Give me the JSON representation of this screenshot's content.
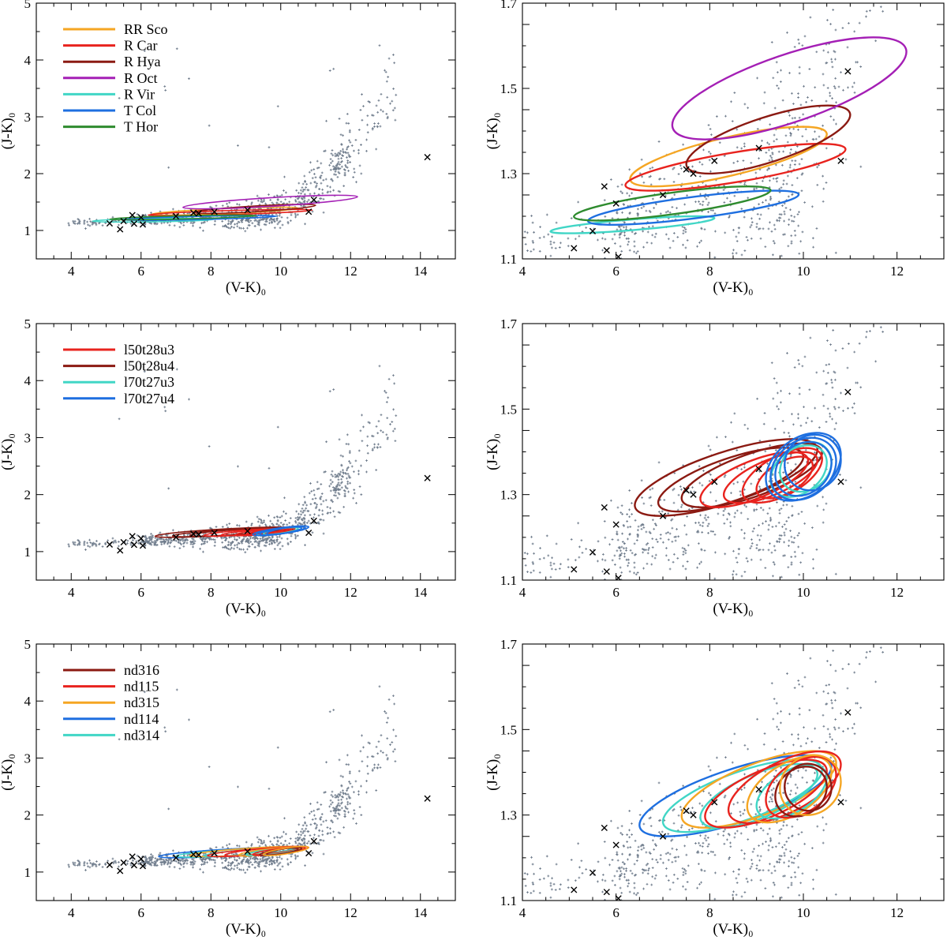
{
  "chart_data": [
    {
      "type": "scatter",
      "panel": "top-left",
      "xlabel": "(V-K)₀",
      "ylabel": "(J-K)₀",
      "xlim": [
        3,
        15
      ],
      "ylim": [
        0.5,
        5
      ],
      "xticks": [
        "4",
        "6",
        "8",
        "10",
        "12",
        "14"
      ],
      "yticks": [
        "1",
        "2",
        "3",
        "4",
        "5"
      ],
      "legend_position": "top-left",
      "legend": [
        {
          "label": "RR Sco",
          "color": "#f5a623"
        },
        {
          "label": "R Car",
          "color": "#e8231e"
        },
        {
          "label": "R Hya",
          "color": "#8b1a12"
        },
        {
          "label": "R Oct",
          "color": "#a41fb5"
        },
        {
          "label": "R Vir",
          "color": "#41d6c6"
        },
        {
          "label": "T Col",
          "color": "#1e6fe0"
        },
        {
          "label": "T Hor",
          "color": "#2e8b2e"
        }
      ],
      "ellipses": [
        {
          "name": "RR Sco",
          "color": "#f5a623",
          "x1": 6.3,
          "x2": 10.5,
          "ymin": 1.27,
          "ymax": 1.41
        },
        {
          "name": "R Car",
          "color": "#e8231e",
          "x1": 6.2,
          "x2": 10.9,
          "ymin": 1.26,
          "ymax": 1.37
        },
        {
          "name": "R Hya",
          "color": "#8b1a12",
          "x1": 7.5,
          "x2": 11.0,
          "ymin": 1.3,
          "ymax": 1.46
        },
        {
          "name": "R Oct",
          "color": "#a41fb5",
          "x1": 7.2,
          "x2": 12.2,
          "ymin": 1.38,
          "ymax": 1.62
        },
        {
          "name": "R Vir",
          "color": "#41d6c6",
          "x1": 4.6,
          "x2": 8.1,
          "ymin": 1.16,
          "ymax": 1.2
        },
        {
          "name": "T Col",
          "color": "#1e6fe0",
          "x1": 5.4,
          "x2": 9.9,
          "ymin": 1.18,
          "ymax": 1.26
        },
        {
          "name": "T Hor",
          "color": "#2e8b2e",
          "x1": 5.1,
          "x2": 9.3,
          "ymin": 1.19,
          "ymax": 1.27
        }
      ]
    },
    {
      "type": "scatter",
      "panel": "top-right",
      "xlabel": "(V-K)₀",
      "ylabel": "(J-K)₀",
      "xlim": [
        4,
        13
      ],
      "ylim": [
        1.1,
        1.7
      ],
      "xticks": [
        "4",
        "6",
        "8",
        "10",
        "12"
      ],
      "yticks": [
        "1.1",
        "1.3",
        "1.5",
        "1.7"
      ],
      "ellipses_same_as": "top-left"
    },
    {
      "type": "scatter",
      "panel": "middle-left",
      "xlabel": "(V-K)₀",
      "ylabel": "(J-K)₀",
      "xlim": [
        3,
        15
      ],
      "ylim": [
        0.5,
        5
      ],
      "xticks": [
        "4",
        "6",
        "8",
        "10",
        "12",
        "14"
      ],
      "yticks": [
        "1",
        "2",
        "3",
        "4",
        "5"
      ],
      "legend_position": "top-left",
      "legend": [
        {
          "label": "l50t28u3",
          "color": "#e8231e"
        },
        {
          "label": "l50t28u4",
          "color": "#8b1a12"
        },
        {
          "label": "l70t27u3",
          "color": "#41d6c6"
        },
        {
          "label": "l70t27u4",
          "color": "#1e6fe0"
        }
      ],
      "ellipses": [
        {
          "name": "l50t28u4",
          "color": "#8b1a12",
          "x1": 6.4,
          "x2": 10.3,
          "ymin": 1.25,
          "ymax": 1.43
        },
        {
          "name": "l50t28u4",
          "color": "#8b1a12",
          "x1": 6.9,
          "x2": 10.0,
          "ymin": 1.26,
          "ymax": 1.41
        },
        {
          "name": "l50t28u4",
          "color": "#8b1a12",
          "x1": 7.4,
          "x2": 10.4,
          "ymin": 1.27,
          "ymax": 1.42
        },
        {
          "name": "l50t28u3",
          "color": "#e8231e",
          "x1": 7.8,
          "x2": 10.1,
          "ymin": 1.27,
          "ymax": 1.4
        },
        {
          "name": "l50t28u3",
          "color": "#e8231e",
          "x1": 8.3,
          "x2": 10.3,
          "ymin": 1.28,
          "ymax": 1.4
        },
        {
          "name": "l50t28u3",
          "color": "#e8231e",
          "x1": 8.7,
          "x2": 10.4,
          "ymin": 1.28,
          "ymax": 1.41
        },
        {
          "name": "l50t28u3",
          "color": "#e8231e",
          "x1": 9.0,
          "x2": 10.2,
          "ymin": 1.29,
          "ymax": 1.39
        },
        {
          "name": "l70t27u3",
          "color": "#41d6c6",
          "x1": 9.3,
          "x2": 10.5,
          "ymin": 1.29,
          "ymax": 1.42
        },
        {
          "name": "l70t27u3",
          "color": "#41d6c6",
          "x1": 9.5,
          "x2": 10.6,
          "ymin": 1.3,
          "ymax": 1.43
        },
        {
          "name": "l70t27u4",
          "color": "#1e6fe0",
          "x1": 9.2,
          "x2": 10.8,
          "ymin": 1.28,
          "ymax": 1.45
        },
        {
          "name": "l70t27u4",
          "color": "#1e6fe0",
          "x1": 9.3,
          "x2": 10.7,
          "ymin": 1.28,
          "ymax": 1.44
        },
        {
          "name": "l70t27u4",
          "color": "#1e6fe0",
          "x1": 9.4,
          "x2": 10.6,
          "ymin": 1.29,
          "ymax": 1.43
        },
        {
          "name": "l70t27u4",
          "color": "#1e6fe0",
          "x1": 9.6,
          "x2": 10.8,
          "ymin": 1.3,
          "ymax": 1.45
        }
      ]
    },
    {
      "type": "scatter",
      "panel": "middle-right",
      "xlabel": "(V-K)₀",
      "ylabel": "(J-K)₀",
      "xlim": [
        4,
        13
      ],
      "ylim": [
        1.1,
        1.7
      ],
      "xticks": [
        "4",
        "6",
        "8",
        "10",
        "12"
      ],
      "yticks": [
        "1.1",
        "1.3",
        "1.5",
        "1.7"
      ],
      "ellipses_same_as": "middle-left"
    },
    {
      "type": "scatter",
      "panel": "bottom-left",
      "xlabel": "(V-K)₀",
      "ylabel": "(J-K)₀",
      "xlim": [
        3,
        15
      ],
      "ylim": [
        0.5,
        5
      ],
      "xticks": [
        "4",
        "6",
        "8",
        "10",
        "12",
        "14"
      ],
      "yticks": [
        "1",
        "2",
        "3",
        "4",
        "5"
      ],
      "legend_position": "top-left",
      "legend": [
        {
          "label": "nd316",
          "color": "#8b1a12"
        },
        {
          "label": "nd115",
          "color": "#e8231e"
        },
        {
          "label": "nd315",
          "color": "#f5a623"
        },
        {
          "label": "nd114",
          "color": "#1e6fe0"
        },
        {
          "label": "nd314",
          "color": "#41d6c6"
        }
      ],
      "ellipses": [
        {
          "name": "nd114",
          "color": "#1e6fe0",
          "x1": 6.5,
          "x2": 10.6,
          "ymin": 1.25,
          "ymax": 1.44
        },
        {
          "name": "nd314",
          "color": "#41d6c6",
          "x1": 7.0,
          "x2": 10.4,
          "ymin": 1.26,
          "ymax": 1.43
        },
        {
          "name": "nd315",
          "color": "#f5a623",
          "x1": 7.4,
          "x2": 10.7,
          "ymin": 1.27,
          "ymax": 1.45
        },
        {
          "name": "nd314",
          "color": "#41d6c6",
          "x1": 7.8,
          "x2": 10.3,
          "ymin": 1.27,
          "ymax": 1.42
        },
        {
          "name": "nd115",
          "color": "#e8231e",
          "x1": 7.9,
          "x2": 10.5,
          "ymin": 1.27,
          "ymax": 1.43
        },
        {
          "name": "nd115",
          "color": "#e8231e",
          "x1": 8.4,
          "x2": 10.8,
          "ymin": 1.28,
          "ymax": 1.45
        },
        {
          "name": "nd315",
          "color": "#f5a623",
          "x1": 8.8,
          "x2": 10.6,
          "ymin": 1.28,
          "ymax": 1.44
        },
        {
          "name": "nd314",
          "color": "#41d6c6",
          "x1": 9.0,
          "x2": 10.5,
          "ymin": 1.29,
          "ymax": 1.42
        },
        {
          "name": "nd115",
          "color": "#e8231e",
          "x1": 9.2,
          "x2": 10.7,
          "ymin": 1.29,
          "ymax": 1.44
        },
        {
          "name": "nd316",
          "color": "#8b1a12",
          "x1": 9.4,
          "x2": 10.5,
          "ymin": 1.29,
          "ymax": 1.42
        },
        {
          "name": "nd316",
          "color": "#8b1a12",
          "x1": 9.6,
          "x2": 10.6,
          "ymin": 1.3,
          "ymax": 1.43
        },
        {
          "name": "nd315",
          "color": "#f5a623",
          "x1": 9.5,
          "x2": 10.8,
          "ymin": 1.29,
          "ymax": 1.45
        }
      ]
    },
    {
      "type": "scatter",
      "panel": "bottom-right",
      "xlabel": "(V-K)₀",
      "ylabel": "(J-K)₀",
      "xlim": [
        4,
        13
      ],
      "ylim": [
        1.1,
        1.7
      ],
      "xticks": [
        "4",
        "6",
        "8",
        "10",
        "12"
      ],
      "yticks": [
        "1.1",
        "1.3",
        "1.5",
        "1.7"
      ],
      "ellipses_same_as": "bottom-left"
    }
  ],
  "observed_stars": [
    {
      "vk": 5.1,
      "jk": 1.125
    },
    {
      "vk": 5.4,
      "jk": 1.02
    },
    {
      "vk": 5.5,
      "jk": 1.165
    },
    {
      "vk": 5.75,
      "jk": 1.27
    },
    {
      "vk": 5.8,
      "jk": 1.12
    },
    {
      "vk": 6.0,
      "jk": 1.23
    },
    {
      "vk": 6.05,
      "jk": 1.105
    },
    {
      "vk": 7.0,
      "jk": 1.25
    },
    {
      "vk": 7.5,
      "jk": 1.31
    },
    {
      "vk": 7.65,
      "jk": 1.3
    },
    {
      "vk": 8.1,
      "jk": 1.33
    },
    {
      "vk": 9.05,
      "jk": 1.36
    },
    {
      "vk": 10.8,
      "jk": 1.33
    },
    {
      "vk": 10.95,
      "jk": 1.54
    },
    {
      "vk": 14.2,
      "jk": 2.29
    }
  ],
  "background_sample": {
    "description_free_params": true,
    "count": 900,
    "seed": 7,
    "color": "#6f7c8c",
    "vk_range": [
      3.9,
      13.3
    ]
  }
}
